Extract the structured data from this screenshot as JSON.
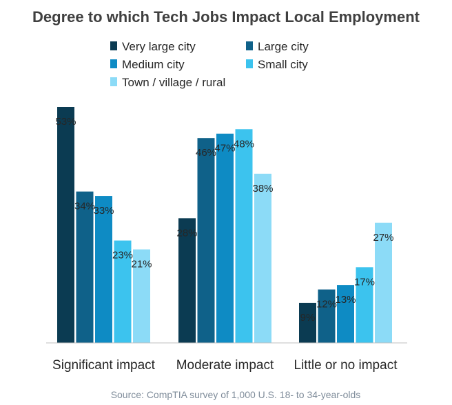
{
  "chart_data": {
    "type": "bar",
    "title": "Degree to which Tech Jobs Impact Local Employment",
    "categories": [
      "Significant impact",
      "Moderate impact",
      "Little or no impact"
    ],
    "series": [
      {
        "name": "Very large city",
        "color": "#0b3b52",
        "values": [
          53,
          28,
          9
        ]
      },
      {
        "name": "Large city",
        "color": "#0f6189",
        "values": [
          34,
          46,
          12
        ]
      },
      {
        "name": "Medium city",
        "color": "#0e8bc4",
        "values": [
          33,
          47,
          13
        ]
      },
      {
        "name": "Small city",
        "color": "#3cc3ee",
        "values": [
          23,
          48,
          17
        ]
      },
      {
        "name": "Town / village / rural",
        "color": "#8cdbf7",
        "values": [
          21,
          38,
          27
        ]
      }
    ],
    "value_suffix": "%",
    "ylim": [
      0,
      53
    ],
    "grid": false,
    "legend": "top",
    "source": "Source: CompTIA survey of 1,000 U.S. 18- to 34-year-olds"
  }
}
